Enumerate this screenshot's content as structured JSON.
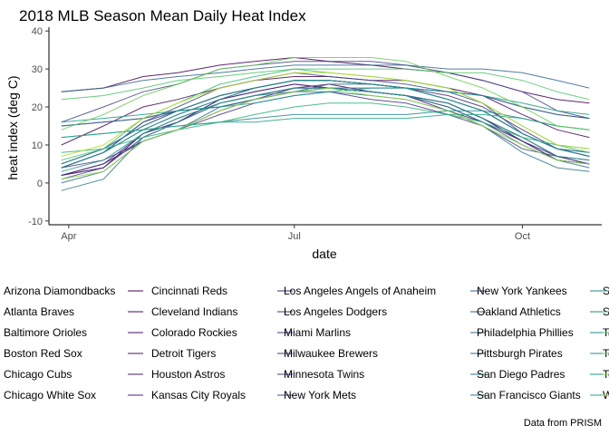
{
  "chart_data": {
    "type": "line",
    "title": "2018 MLB Season Mean Daily Heat Index",
    "xlabel": "date",
    "ylabel": "heat index (deg C)",
    "caption": "Data from PRISM",
    "x_range": [
      "2018-03-29",
      "2018-10-28"
    ],
    "xticks": [
      {
        "date": "2018-04-01",
        "label": "Apr"
      },
      {
        "date": "2018-07-01",
        "label": "Jul"
      },
      {
        "date": "2018-10-01",
        "label": "Oct"
      }
    ],
    "ylim": [
      -11,
      41
    ],
    "yticks": [
      -10,
      0,
      10,
      20,
      30,
      40
    ],
    "grid": false,
    "legend_position": "bottom",
    "sample_dates": [
      "2018-03-29",
      "2018-04-15",
      "2018-05-01",
      "2018-05-15",
      "2018-06-01",
      "2018-06-15",
      "2018-07-01",
      "2018-07-15",
      "2018-08-01",
      "2018-08-15",
      "2018-09-01",
      "2018-09-15",
      "2018-10-01",
      "2018-10-15",
      "2018-10-28"
    ],
    "series": [
      {
        "name": "Arizona Diamondbacks",
        "color": "#440154",
        "values": [
          24,
          25,
          28,
          29,
          31,
          32,
          33,
          32,
          31,
          30,
          29,
          27,
          24,
          22,
          21
        ]
      },
      {
        "name": "Atlanta Braves",
        "color": "#46085c",
        "values": [
          10,
          15,
          20,
          22,
          25,
          27,
          28,
          28,
          27,
          27,
          25,
          23,
          18,
          14,
          12
        ]
      },
      {
        "name": "Baltimore Orioles",
        "color": "#471063",
        "values": [
          5,
          9,
          15,
          19,
          23,
          25,
          27,
          27,
          26,
          25,
          22,
          19,
          13,
          9,
          8
        ]
      },
      {
        "name": "Boston Red Sox",
        "color": "#481769",
        "values": [
          2,
          5,
          11,
          14,
          19,
          22,
          25,
          26,
          24,
          23,
          19,
          16,
          11,
          7,
          5
        ]
      },
      {
        "name": "Chicago Cubs",
        "color": "#481d6f",
        "values": [
          2,
          4,
          13,
          16,
          22,
          24,
          26,
          25,
          24,
          23,
          21,
          17,
          11,
          6,
          5
        ]
      },
      {
        "name": "Chicago White Sox",
        "color": "#482475",
        "values": [
          2,
          4,
          13,
          16,
          22,
          24,
          26,
          25,
          24,
          23,
          21,
          17,
          11,
          6,
          5
        ]
      },
      {
        "name": "Cincinnati Reds",
        "color": "#472a7a",
        "values": [
          4,
          8,
          16,
          19,
          23,
          25,
          27,
          27,
          26,
          25,
          23,
          20,
          14,
          9,
          7
        ]
      },
      {
        "name": "Cleveland Indians",
        "color": "#46307e",
        "values": [
          2,
          5,
          13,
          17,
          21,
          23,
          25,
          25,
          24,
          23,
          21,
          17,
          12,
          7,
          6
        ]
      },
      {
        "name": "Colorado Rockies",
        "color": "#44377f",
        "values": [
          4,
          6,
          11,
          14,
          18,
          21,
          23,
          24,
          22,
          21,
          18,
          15,
          9,
          7,
          5
        ]
      },
      {
        "name": "Detroit Tigers",
        "color": "#423e84",
        "values": [
          1,
          4,
          12,
          16,
          21,
          23,
          25,
          25,
          24,
          23,
          20,
          16,
          11,
          6,
          5
        ]
      },
      {
        "name": "Houston Astros",
        "color": "#404387",
        "values": [
          16,
          20,
          24,
          26,
          30,
          31,
          32,
          32,
          32,
          31,
          29,
          27,
          24,
          19,
          17
        ]
      },
      {
        "name": "Kansas City Royals",
        "color": "#3c4f8a",
        "values": [
          4,
          8,
          16,
          20,
          25,
          27,
          29,
          28,
          27,
          26,
          24,
          21,
          13,
          9,
          7
        ]
      },
      {
        "name": "Los Angeles Angels of Anaheim",
        "color": "#38588c",
        "values": [
          15,
          16,
          17,
          19,
          20,
          22,
          24,
          25,
          25,
          25,
          24,
          23,
          20,
          18,
          17
        ]
      },
      {
        "name": "Los Angeles Dodgers",
        "color": "#355f8d",
        "values": [
          15,
          16,
          17,
          19,
          20,
          22,
          24,
          26,
          26,
          25,
          24,
          23,
          20,
          18,
          17
        ]
      },
      {
        "name": "Miami Marlins",
        "color": "#31688e",
        "values": [
          24,
          25,
          27,
          28,
          29,
          30,
          31,
          31,
          31,
          31,
          30,
          30,
          29,
          27,
          25
        ]
      },
      {
        "name": "Milwaukee Brewers",
        "color": "#2e6e8e",
        "values": [
          0,
          3,
          11,
          14,
          20,
          22,
          24,
          25,
          24,
          23,
          20,
          16,
          10,
          6,
          4
        ]
      },
      {
        "name": "Minnesota Twins",
        "color": "#2b758e",
        "values": [
          -2,
          1,
          12,
          16,
          21,
          23,
          24,
          24,
          23,
          22,
          19,
          15,
          8,
          4,
          3
        ]
      },
      {
        "name": "New York Mets",
        "color": "#297b8e",
        "values": [
          4,
          8,
          14,
          18,
          22,
          25,
          27,
          27,
          26,
          25,
          22,
          19,
          13,
          9,
          7
        ]
      },
      {
        "name": "New York Yankees",
        "color": "#26828e",
        "values": [
          4,
          8,
          14,
          18,
          22,
          25,
          27,
          27,
          26,
          25,
          22,
          19,
          13,
          9,
          7
        ]
      },
      {
        "name": "Oakland Athletics",
        "color": "#24878e",
        "values": [
          12,
          13,
          14,
          15,
          16,
          17,
          18,
          18,
          18,
          18,
          19,
          19,
          17,
          15,
          14
        ]
      },
      {
        "name": "Philadelphia Phillies",
        "color": "#218e8d",
        "values": [
          5,
          9,
          15,
          19,
          23,
          25,
          27,
          27,
          26,
          25,
          22,
          19,
          13,
          9,
          8
        ]
      },
      {
        "name": "Pittsburgh Pirates",
        "color": "#1f948c",
        "values": [
          3,
          6,
          13,
          17,
          21,
          23,
          25,
          25,
          24,
          23,
          21,
          17,
          12,
          7,
          6
        ]
      },
      {
        "name": "San Diego Padres",
        "color": "#1e9b8a",
        "values": [
          16,
          17,
          18,
          19,
          20,
          21,
          23,
          24,
          25,
          25,
          24,
          23,
          21,
          19,
          18
        ]
      },
      {
        "name": "San Francisco Giants",
        "color": "#21a685",
        "values": [
          12,
          13,
          14,
          15,
          16,
          16,
          17,
          17,
          17,
          17,
          18,
          18,
          17,
          15,
          14
        ]
      },
      {
        "name": "Seattle Mariners",
        "color": "#2cb17e",
        "values": [
          8,
          9,
          12,
          14,
          16,
          18,
          20,
          21,
          21,
          20,
          18,
          16,
          12,
          10,
          9
        ]
      },
      {
        "name": "St. Louis Cardinals",
        "color": "#3bbb75",
        "values": [
          6,
          9,
          17,
          21,
          26,
          28,
          30,
          29,
          28,
          27,
          25,
          21,
          15,
          10,
          8
        ]
      },
      {
        "name": "Tampa Bay Rays",
        "color": "#50c46a",
        "values": [
          22,
          23,
          25,
          27,
          28,
          29,
          30,
          30,
          30,
          30,
          29,
          29,
          27,
          24,
          22
        ]
      },
      {
        "name": "Texas Rangers",
        "color": "#6ccd5a",
        "values": [
          14,
          18,
          23,
          26,
          30,
          31,
          33,
          33,
          33,
          32,
          28,
          25,
          20,
          15,
          14
        ]
      },
      {
        "name": "Toronto Blue Jays",
        "color": "#8fd744",
        "values": [
          1,
          3,
          11,
          14,
          19,
          22,
          24,
          25,
          23,
          22,
          19,
          15,
          10,
          6,
          5
        ]
      },
      {
        "name": "Washington Nationals",
        "color": "#bade28",
        "values": [
          7,
          10,
          17,
          21,
          25,
          27,
          29,
          29,
          28,
          27,
          25,
          21,
          15,
          10,
          9
        ]
      }
    ]
  }
}
